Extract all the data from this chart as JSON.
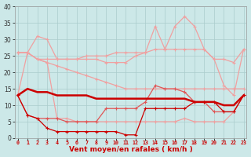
{
  "x": [
    0,
    1,
    2,
    3,
    4,
    5,
    6,
    7,
    8,
    9,
    10,
    11,
    12,
    13,
    14,
    15,
    16,
    17,
    18,
    19,
    20,
    21,
    22,
    23
  ],
  "line_rafales_top": [
    26,
    26,
    31,
    30,
    24,
    24,
    24,
    25,
    25,
    25,
    26,
    26,
    26,
    26,
    34,
    27,
    34,
    37,
    34,
    27,
    24,
    16,
    13,
    27
  ],
  "line_rafales_mid": [
    26,
    26,
    24,
    24,
    24,
    24,
    24,
    24,
    24,
    23,
    23,
    23,
    25,
    26,
    27,
    27,
    27,
    27,
    27,
    27,
    24,
    24,
    23,
    27
  ],
  "line_vent_upper": [
    13,
    26,
    24,
    23,
    22,
    21,
    20,
    19,
    18,
    17,
    16,
    15,
    15,
    15,
    15,
    15,
    15,
    15,
    15,
    15,
    15,
    15,
    15,
    15
  ],
  "line_vent_markers": [
    13,
    7,
    6,
    6,
    6,
    5,
    5,
    5,
    5,
    9,
    9,
    9,
    9,
    11,
    16,
    15,
    15,
    14,
    11,
    11,
    8,
    8,
    8,
    13
  ],
  "line_dark_mean": [
    13,
    15,
    14,
    14,
    13,
    13,
    13,
    13,
    12,
    12,
    12,
    12,
    12,
    12,
    12,
    12,
    12,
    12,
    11,
    11,
    11,
    10,
    10,
    13
  ],
  "line_dark_low": [
    13,
    7,
    6,
    3,
    2,
    2,
    2,
    2,
    2,
    2,
    2,
    1,
    1,
    9,
    9,
    9,
    9,
    9,
    11,
    11,
    11,
    8,
    8,
    13
  ],
  "line_pink_low": [
    26,
    26,
    24,
    23,
    6,
    6,
    5,
    5,
    5,
    5,
    5,
    5,
    5,
    5,
    5,
    5,
    5,
    6,
    5,
    5,
    5,
    5,
    8,
    13
  ],
  "color_light": "#f0a0a0",
  "color_medium": "#e05555",
  "color_dark": "#cc0000",
  "background": "#cce8e8",
  "grid_color": "#aacccc",
  "xlabel": "Vent moyen/en rafales ( km/h )",
  "yticks": [
    0,
    5,
    10,
    15,
    20,
    25,
    30,
    35,
    40
  ],
  "xticks": [
    0,
    1,
    2,
    3,
    4,
    5,
    6,
    7,
    8,
    9,
    10,
    11,
    12,
    13,
    14,
    15,
    16,
    17,
    18,
    19,
    20,
    21,
    22,
    23
  ]
}
